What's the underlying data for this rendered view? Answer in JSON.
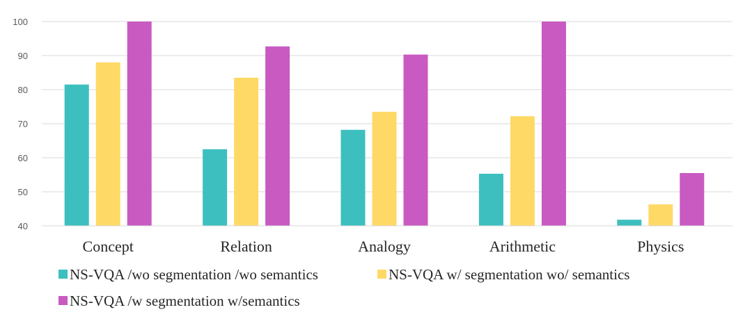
{
  "chart_data": {
    "type": "bar",
    "title": "",
    "xlabel": "",
    "ylabel": "",
    "ylim": [
      40,
      100
    ],
    "yticks": [
      40,
      50,
      60,
      70,
      80,
      90,
      100
    ],
    "grid": true,
    "legend_position": "bottom",
    "categories": [
      "Concept",
      "Relation",
      "Analogy",
      "Arithmetic",
      "Physics"
    ],
    "series": [
      {
        "name": "NS-VQA /wo segmentation /wo semantics",
        "color": "#3dbfbf",
        "values": [
          81.5,
          62.5,
          68.2,
          55.3,
          41.8
        ]
      },
      {
        "name": "NS-VQA w/ segmentation wo/ semantics",
        "color": "#ffd966",
        "values": [
          88.0,
          83.5,
          73.5,
          72.2,
          46.3
        ]
      },
      {
        "name": "NS-VQA /w segmentation w/semantics",
        "color": "#c85ac2",
        "values": [
          100,
          92.7,
          90.3,
          100,
          55.5
        ]
      }
    ]
  }
}
